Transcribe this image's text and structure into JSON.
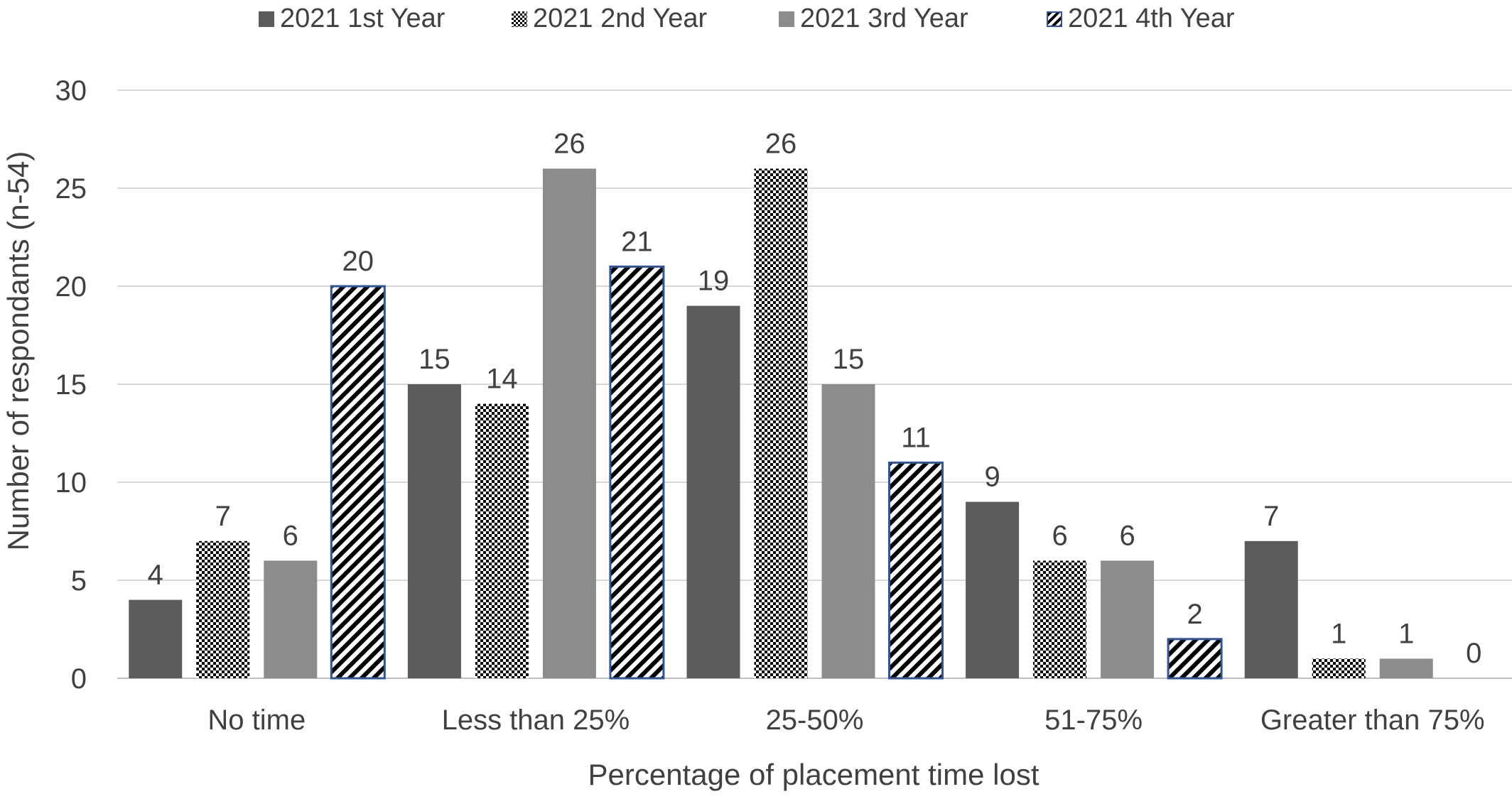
{
  "chart_data": {
    "type": "bar",
    "xlabel": "Percentage of placement time lost",
    "ylabel": "Number of respondants (n-54)",
    "ylim": [
      0,
      30
    ],
    "yticks": [
      0,
      5,
      10,
      15,
      20,
      25,
      30
    ],
    "grid": true,
    "legend_position": "top",
    "categories": [
      "No time",
      "Less than 25%",
      "25-50%",
      "51-75%",
      "Greater than 75%"
    ],
    "series": [
      {
        "name": "2021 1st Year",
        "values": [
          4,
          15,
          19,
          9,
          7
        ],
        "color": "#5b5b5b",
        "pattern": "solid"
      },
      {
        "name": "2021 2nd Year",
        "values": [
          7,
          14,
          26,
          6,
          1
        ],
        "color": "#000000",
        "pattern": "checker"
      },
      {
        "name": "2021 3rd Year",
        "values": [
          6,
          26,
          15,
          6,
          1
        ],
        "color": "#8c8c8c",
        "pattern": "solid"
      },
      {
        "name": "2021 4th Year",
        "values": [
          20,
          21,
          11,
          2,
          0
        ],
        "color": "#000000",
        "pattern": "diagonal",
        "border": "#2f5597"
      }
    ]
  }
}
